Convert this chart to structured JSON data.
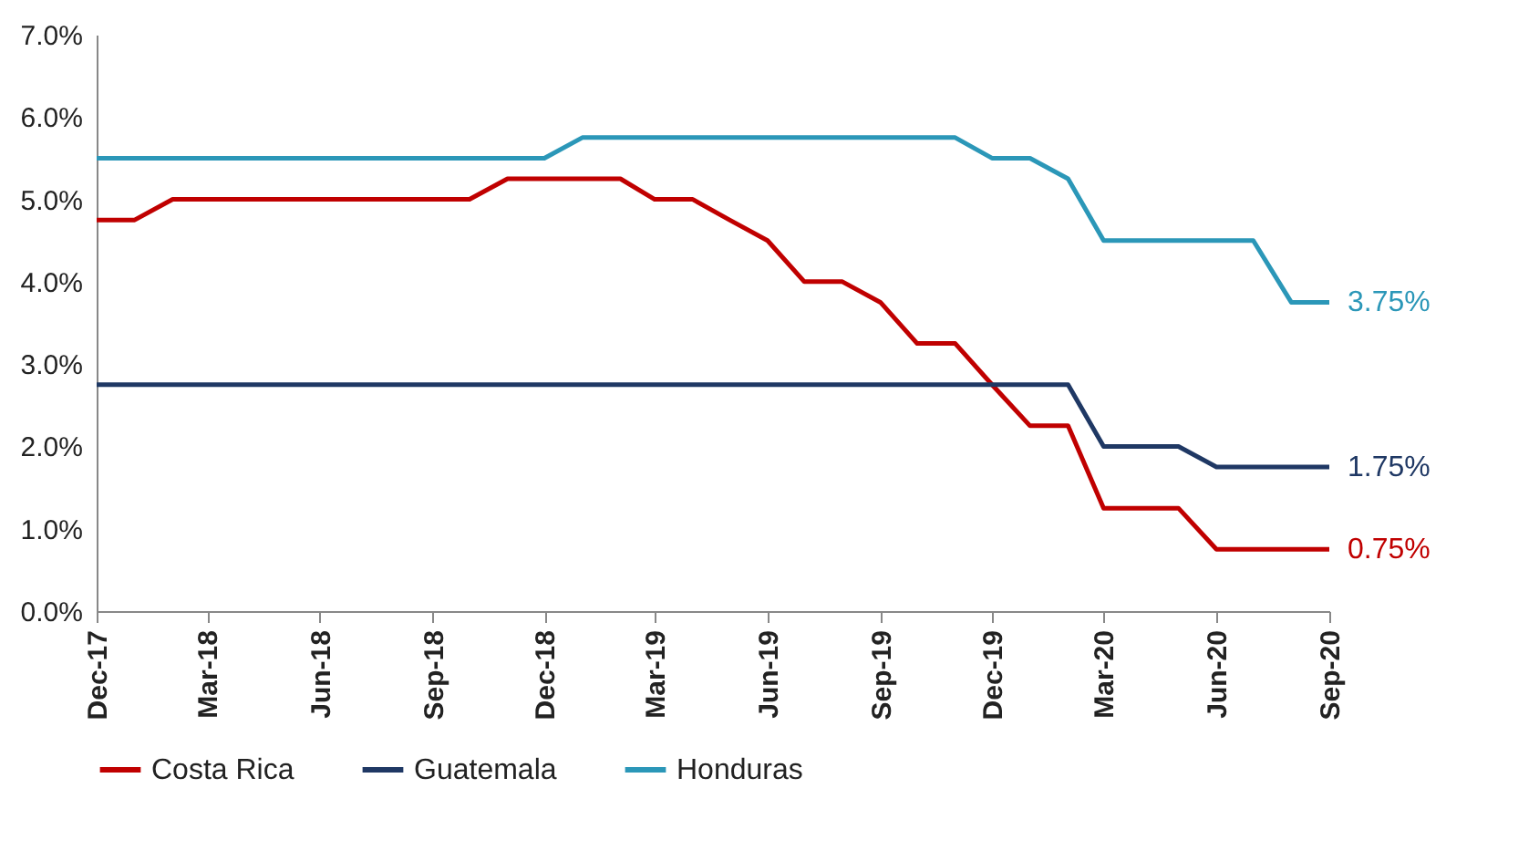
{
  "chart_data": {
    "type": "line",
    "x": [
      "2017-12",
      "2018-01",
      "2018-02",
      "2018-03",
      "2018-04",
      "2018-05",
      "2018-06",
      "2018-07",
      "2018-08",
      "2018-09",
      "2018-10",
      "2018-11",
      "2018-12",
      "2019-01",
      "2019-02",
      "2019-03",
      "2019-04",
      "2019-05",
      "2019-06",
      "2019-07",
      "2019-08",
      "2019-09",
      "2019-10",
      "2019-11",
      "2019-12",
      "2020-01",
      "2020-02",
      "2020-03",
      "2020-04",
      "2020-05",
      "2020-06",
      "2020-07",
      "2020-08",
      "2020-09"
    ],
    "series": [
      {
        "name": "Costa Rica",
        "color": "#c00000",
        "values": [
          4.75,
          4.75,
          5.0,
          5.0,
          5.0,
          5.0,
          5.0,
          5.0,
          5.0,
          5.0,
          5.0,
          5.25,
          5.25,
          5.25,
          5.25,
          5.0,
          5.0,
          4.75,
          4.5,
          4.0,
          4.0,
          3.75,
          3.25,
          3.25,
          2.75,
          2.25,
          2.25,
          1.25,
          1.25,
          1.25,
          0.75,
          0.75,
          0.75,
          0.75
        ],
        "value_labels": [
          null,
          null,
          null,
          null,
          null,
          null,
          null,
          null,
          null,
          null,
          null,
          null,
          null,
          null,
          null,
          null,
          null,
          null,
          null,
          null,
          null,
          null,
          null,
          null,
          null,
          null,
          null,
          null,
          null,
          null,
          null,
          null,
          null,
          "0.75%"
        ]
      },
      {
        "name": "Guatemala",
        "color": "#1f3864",
        "values": [
          2.75,
          2.75,
          2.75,
          2.75,
          2.75,
          2.75,
          2.75,
          2.75,
          2.75,
          2.75,
          2.75,
          2.75,
          2.75,
          2.75,
          2.75,
          2.75,
          2.75,
          2.75,
          2.75,
          2.75,
          2.75,
          2.75,
          2.75,
          2.75,
          2.75,
          2.75,
          2.75,
          2.0,
          2.0,
          2.0,
          1.75,
          1.75,
          1.75,
          1.75
        ],
        "value_labels": [
          null,
          null,
          null,
          null,
          null,
          null,
          null,
          null,
          null,
          null,
          null,
          null,
          null,
          null,
          null,
          null,
          null,
          null,
          null,
          null,
          null,
          null,
          null,
          null,
          null,
          null,
          null,
          null,
          null,
          null,
          null,
          null,
          null,
          "1.75%"
        ]
      },
      {
        "name": "Honduras",
        "color": "#2b97b8",
        "values": [
          5.5,
          5.5,
          5.5,
          5.5,
          5.5,
          5.5,
          5.5,
          5.5,
          5.5,
          5.5,
          5.5,
          5.5,
          5.5,
          5.75,
          5.75,
          5.75,
          5.75,
          5.75,
          5.75,
          5.75,
          5.75,
          5.75,
          5.75,
          5.75,
          5.5,
          5.5,
          5.25,
          4.5,
          4.5,
          4.5,
          4.5,
          4.5,
          3.75,
          3.75
        ],
        "value_labels": [
          null,
          null,
          null,
          null,
          null,
          null,
          null,
          null,
          null,
          null,
          null,
          null,
          null,
          null,
          null,
          null,
          null,
          null,
          null,
          null,
          null,
          null,
          null,
          null,
          null,
          null,
          null,
          null,
          null,
          null,
          null,
          null,
          null,
          "3.75%"
        ]
      }
    ],
    "xlim": [
      "2017-12",
      "2020-09"
    ],
    "xticks": [
      {
        "value": "2017-12",
        "label": "Dec-17"
      },
      {
        "value": "2018-03",
        "label": "Mar-18"
      },
      {
        "value": "2018-06",
        "label": "Jun-18"
      },
      {
        "value": "2018-09",
        "label": "Sep-18"
      },
      {
        "value": "2018-12",
        "label": "Dec-18"
      },
      {
        "value": "2019-03",
        "label": "Mar-19"
      },
      {
        "value": "2019-06",
        "label": "Jun-19"
      },
      {
        "value": "2019-09",
        "label": "Sep-19"
      },
      {
        "value": "2019-12",
        "label": "Dec-19"
      },
      {
        "value": "2020-03",
        "label": "Mar-20"
      },
      {
        "value": "2020-06",
        "label": "Jun-20"
      },
      {
        "value": "2020-09",
        "label": "Sep-20"
      }
    ],
    "ylim": [
      0,
      7
    ],
    "yticks": [
      {
        "value": 0,
        "label": "0.0%"
      },
      {
        "value": 1,
        "label": "1.0%"
      },
      {
        "value": 2,
        "label": "2.0%"
      },
      {
        "value": 3,
        "label": "3.0%"
      },
      {
        "value": 4,
        "label": "4.0%"
      },
      {
        "value": 5,
        "label": "5.0%"
      },
      {
        "value": 6,
        "label": "6.0%"
      },
      {
        "value": 7,
        "label": "7.0%"
      }
    ],
    "grid": false,
    "legend": "bottom",
    "marker": "none",
    "line_style": "solid"
  }
}
